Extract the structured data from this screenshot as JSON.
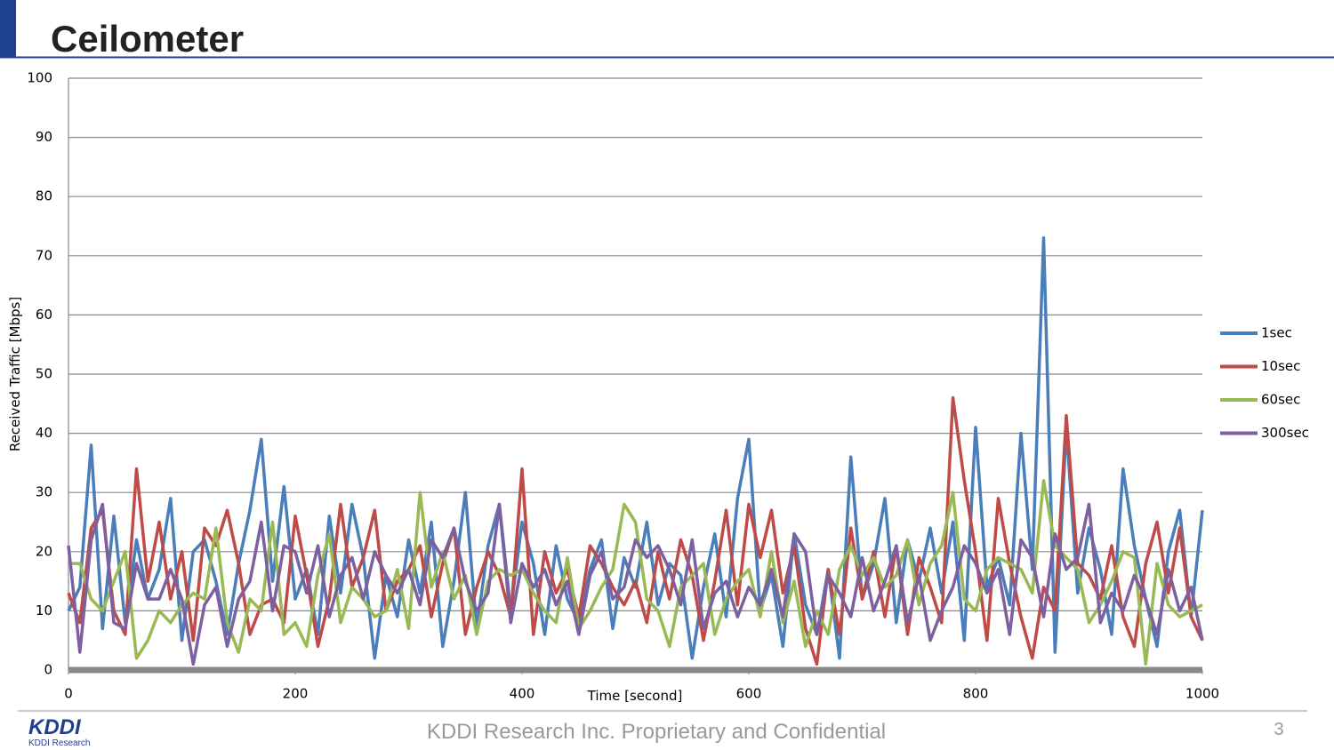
{
  "header": {
    "title": "Ceilometer"
  },
  "chart_data": {
    "type": "line",
    "x_label": "Time [second]",
    "y_label": "Received Traffic [Mbps]",
    "x": [
      0,
      10,
      20,
      30,
      40,
      50,
      60,
      70,
      80,
      90,
      100,
      110,
      120,
      130,
      140,
      150,
      160,
      170,
      180,
      190,
      200,
      210,
      220,
      230,
      240,
      250,
      260,
      270,
      280,
      290,
      300,
      310,
      320,
      330,
      340,
      350,
      360,
      370,
      380,
      390,
      400,
      410,
      420,
      430,
      440,
      450,
      460,
      470,
      480,
      490,
      500,
      510,
      520,
      530,
      540,
      550,
      560,
      570,
      580,
      590,
      600,
      610,
      620,
      630,
      640,
      650,
      660,
      670,
      680,
      690,
      700,
      710,
      720,
      730,
      740,
      750,
      760,
      770,
      780,
      790,
      800,
      810,
      820,
      830,
      840,
      850,
      860,
      870,
      880,
      890,
      900,
      910,
      920,
      930,
      940,
      950,
      960,
      970,
      980,
      990,
      1000
    ],
    "series": [
      {
        "name": "1sec",
        "color": "#4a7ebb",
        "values": [
          10,
          14,
          38,
          7,
          26,
          8,
          22,
          12,
          17,
          29,
          5,
          20,
          22,
          15,
          6,
          18,
          27,
          39,
          15,
          31,
          12,
          17,
          6,
          26,
          13,
          28,
          19,
          2,
          16,
          9,
          22,
          13,
          25,
          4,
          15,
          30,
          7,
          21,
          28,
          10,
          25,
          18,
          6,
          21,
          12,
          8,
          17,
          22,
          7,
          19,
          14,
          25,
          11,
          18,
          16,
          2,
          14,
          23,
          9,
          29,
          39,
          10,
          16,
          4,
          23,
          11,
          6,
          17,
          2,
          36,
          12,
          18,
          29,
          8,
          22,
          15,
          24,
          13,
          25,
          5,
          41,
          14,
          19,
          11,
          40,
          17,
          73,
          3,
          41,
          13,
          24,
          17,
          6,
          34,
          21,
          12,
          4,
          20,
          27,
          9,
          27
        ]
      },
      {
        "name": "10sec",
        "color": "#be4b48",
        "values": [
          13,
          8,
          24,
          27,
          10,
          6,
          34,
          15,
          25,
          12,
          20,
          5,
          24,
          21,
          27,
          18,
          6,
          11,
          12,
          8,
          26,
          16,
          4,
          12,
          28,
          14,
          19,
          27,
          10,
          15,
          17,
          21,
          9,
          18,
          24,
          6,
          14,
          20,
          16,
          9,
          34,
          6,
          20,
          13,
          17,
          9,
          21,
          18,
          14,
          11,
          15,
          8,
          20,
          12,
          22,
          16,
          5,
          15,
          27,
          11,
          28,
          19,
          27,
          13,
          21,
          7,
          1,
          17,
          6,
          24,
          12,
          20,
          9,
          21,
          6,
          19,
          14,
          8,
          46,
          32,
          20,
          5,
          29,
          18,
          9,
          2,
          14,
          10,
          43,
          18,
          16,
          12,
          21,
          9,
          4,
          18,
          25,
          13,
          24,
          9,
          5
        ]
      },
      {
        "name": "60sec",
        "color": "#98b954",
        "values": [
          18,
          18,
          12,
          10,
          15,
          20,
          2,
          5,
          10,
          8,
          11,
          13,
          12,
          24,
          8,
          3,
          12,
          10,
          25,
          6,
          8,
          4,
          16,
          23,
          8,
          14,
          12,
          9,
          10,
          17,
          7,
          30,
          14,
          20,
          12,
          16,
          6,
          15,
          17,
          16,
          17,
          13,
          10,
          8,
          19,
          7,
          10,
          14,
          17,
          28,
          25,
          12,
          10,
          4,
          14,
          16,
          18,
          6,
          12,
          15,
          17,
          9,
          20,
          8,
          15,
          4,
          10,
          6,
          17,
          21,
          16,
          19,
          14,
          16,
          22,
          11,
          18,
          21,
          30,
          12,
          10,
          17,
          19,
          18,
          17,
          13,
          32,
          21,
          19,
          17,
          8,
          11,
          15,
          20,
          19,
          1,
          18,
          11,
          9,
          10,
          11
        ]
      },
      {
        "name": "300sec",
        "color": "#7d60a0",
        "values": [
          21,
          3,
          22,
          28,
          8,
          7,
          18,
          12,
          12,
          17,
          12,
          1,
          11,
          14,
          4,
          12,
          15,
          25,
          10,
          21,
          20,
          13,
          21,
          9,
          16,
          19,
          12,
          20,
          16,
          13,
          17,
          11,
          22,
          19,
          24,
          15,
          10,
          13,
          28,
          8,
          18,
          14,
          17,
          11,
          15,
          6,
          16,
          20,
          12,
          14,
          22,
          19,
          21,
          17,
          11,
          22,
          7,
          13,
          15,
          9,
          14,
          11,
          17,
          9,
          23,
          20,
          6,
          16,
          13,
          9,
          19,
          10,
          15,
          21,
          8,
          16,
          5,
          10,
          14,
          21,
          18,
          13,
          17,
          6,
          22,
          19,
          9,
          23,
          17,
          19,
          28,
          8,
          13,
          10,
          16,
          12,
          6,
          17,
          10,
          14,
          5
        ]
      }
    ],
    "xlim": [
      0,
      1000
    ],
    "xticks": [
      0,
      200,
      400,
      600,
      800,
      1000
    ],
    "ylim": [
      0,
      100
    ],
    "yticks": [
      0,
      10,
      20,
      30,
      40,
      50,
      60,
      70,
      80,
      90,
      100
    ],
    "grid": true,
    "legend": "right"
  },
  "footer": {
    "text": "KDDI Research Inc. Proprietary and Confidential",
    "page": "3"
  },
  "logo": {
    "mark": "KDDI",
    "text": "KDDI Research"
  }
}
